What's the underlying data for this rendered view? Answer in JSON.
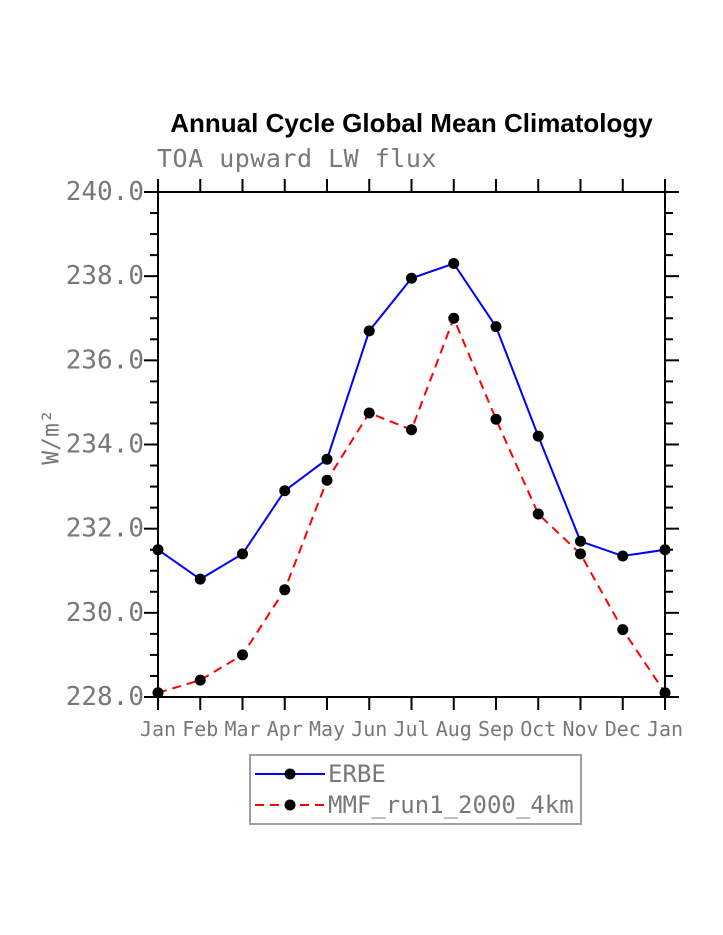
{
  "chart_data": {
    "type": "line",
    "title": "Annual Cycle Global Mean Climatology",
    "subtitle": "TOA upward LW flux",
    "ylabel": "W/m²",
    "xlabel": "",
    "ylim": [
      228.0,
      240.0
    ],
    "yticks": [
      228.0,
      230.0,
      232.0,
      234.0,
      236.0,
      238.0,
      240.0
    ],
    "ytick_minor_step": 0.5,
    "grid": false,
    "categories": [
      "Jan",
      "Feb",
      "Mar",
      "Apr",
      "May",
      "Jun",
      "Jul",
      "Aug",
      "Sep",
      "Oct",
      "Nov",
      "Dec",
      "Jan"
    ],
    "series": [
      {
        "name": "ERBE",
        "color": "#0000ff",
        "line_style": "solid",
        "marker": "filled-circle",
        "marker_color": "#000000",
        "values": [
          231.5,
          230.8,
          231.4,
          232.9,
          233.65,
          236.7,
          237.95,
          238.3,
          236.8,
          234.2,
          231.7,
          231.35,
          231.5
        ]
      },
      {
        "name": "MMF_run1_2000_4km",
        "color": "#ff0000",
        "line_style": "dashed",
        "marker": "filled-circle",
        "marker_color": "#000000",
        "values": [
          228.1,
          228.4,
          229.0,
          230.55,
          233.15,
          234.75,
          234.35,
          237.0,
          234.6,
          232.35,
          231.4,
          229.6,
          228.1
        ]
      }
    ],
    "legend_position": "bottom-center",
    "axis_color": "#000000",
    "text_color": "#787878"
  }
}
